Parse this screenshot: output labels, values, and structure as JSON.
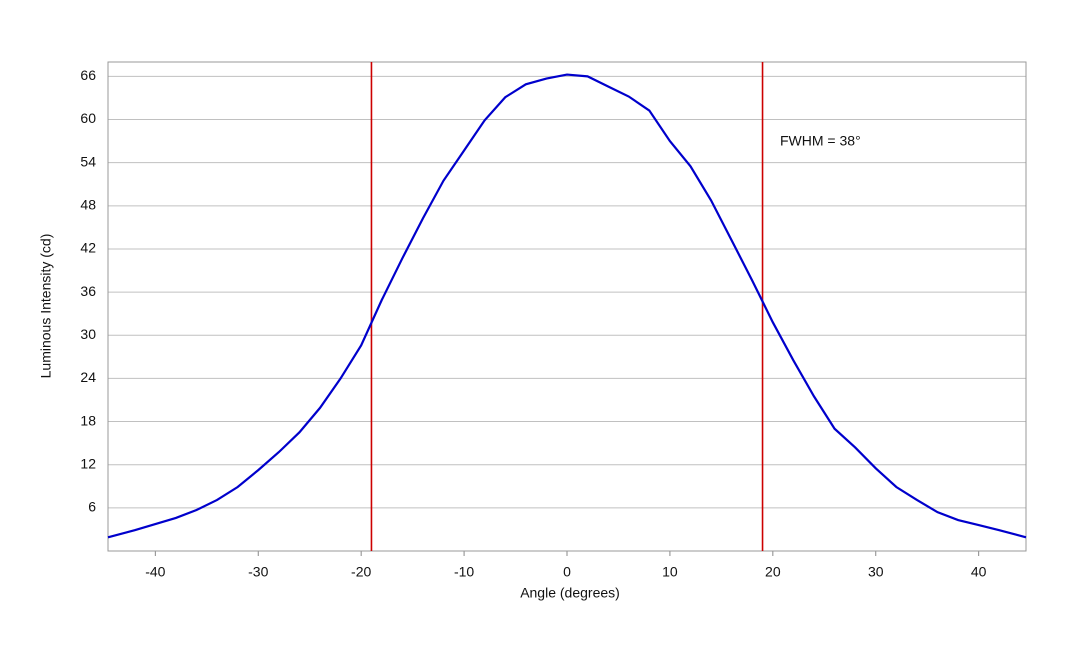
{
  "chart_data": {
    "type": "line",
    "xlabel": "Angle (degrees)",
    "ylabel": "Luminous Intensity (cd)",
    "annotation": "FWHM = 38°",
    "x": [
      -44.6,
      -42,
      -40,
      -38,
      -36,
      -34,
      -32,
      -30,
      -28,
      -26,
      -24,
      -22,
      -20,
      -18,
      -16,
      -14,
      -12,
      -10,
      -8,
      -6,
      -4,
      -2,
      0,
      2,
      4,
      6,
      8,
      10,
      12,
      14,
      16,
      18,
      20,
      22,
      24,
      26,
      28,
      30,
      32,
      34,
      36,
      38,
      40,
      42,
      44.6
    ],
    "series": [
      {
        "color": "#0000cc",
        "values": [
          1.9,
          2.9,
          3.75,
          4.6,
          5.7,
          7.1,
          8.9,
          11.25,
          13.75,
          16.5,
          19.9,
          24,
          28.6,
          34.9,
          40.7,
          46.25,
          51.5,
          55.7,
          59.9,
          63.1,
          64.9,
          65.7,
          66.25,
          66,
          64.6,
          63.2,
          61.25,
          57,
          53.5,
          48.75,
          43.2,
          37.6,
          31.8,
          26.5,
          21.5,
          17,
          14.4,
          11.5,
          8.9,
          7.1,
          5.4,
          4.3,
          3.6,
          2.9,
          1.9
        ]
      }
    ],
    "vlines": [
      {
        "x": -19,
        "color": "#cc0000"
      },
      {
        "x": 19,
        "color": "#cc0000"
      }
    ],
    "xlim": [
      -44.6,
      44.6
    ],
    "ylim": [
      0,
      68
    ],
    "xticks": [
      -40,
      -30,
      -20,
      -10,
      0,
      10,
      20,
      30,
      40
    ],
    "yticks": [
      6,
      12,
      18,
      24,
      30,
      36,
      42,
      48,
      54,
      60,
      66
    ],
    "grid": "y"
  }
}
